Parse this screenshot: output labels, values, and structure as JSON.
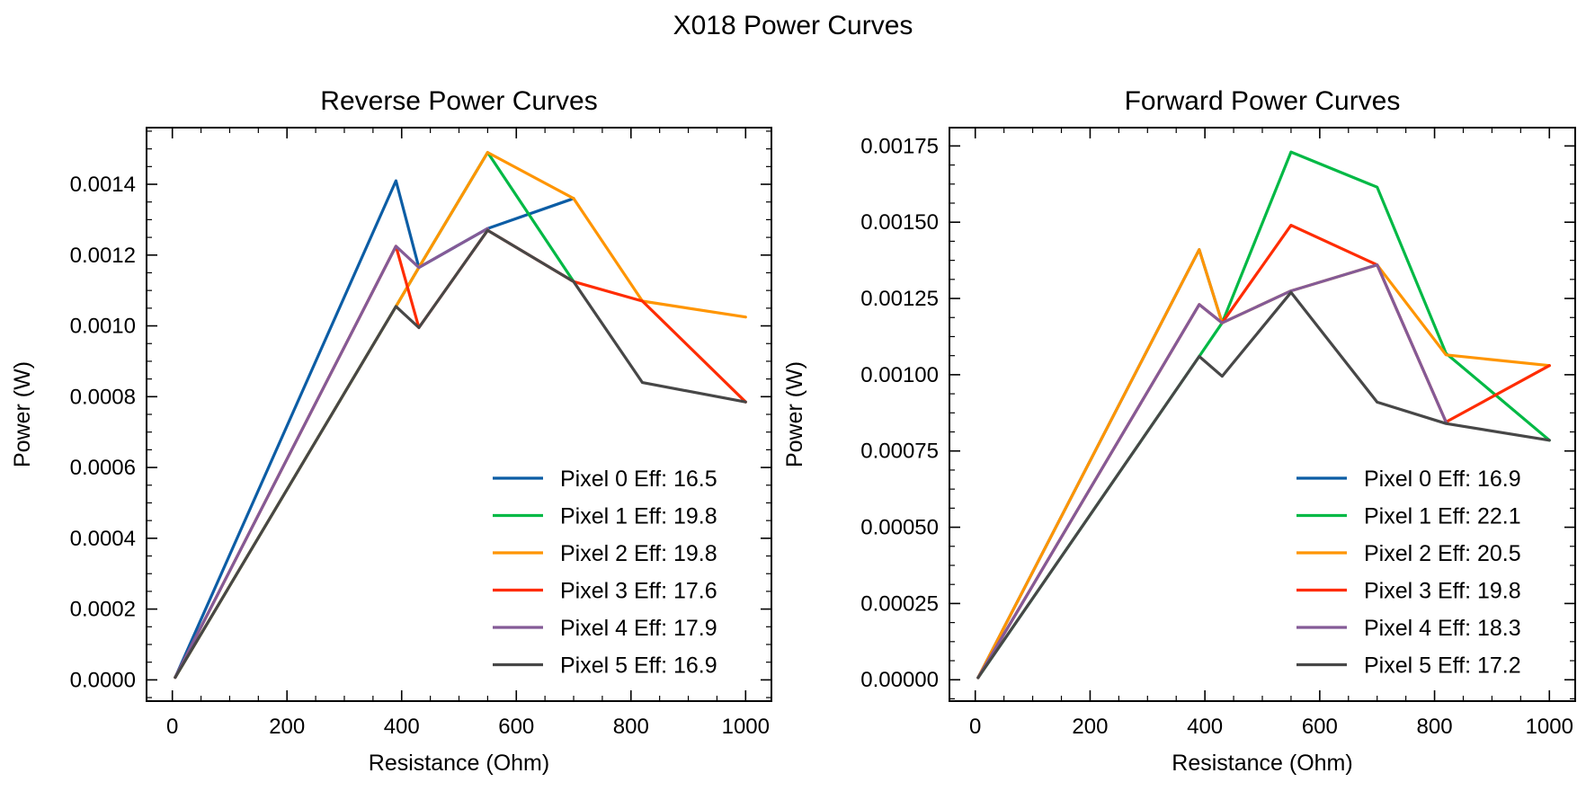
{
  "suptitle": "X018 Power Curves",
  "chart_data": [
    {
      "type": "line",
      "title": "Reverse Power Curves",
      "xlabel": "Resistance (Ohm)",
      "ylabel": "Power (W)",
      "xlim": [
        -45,
        1045
      ],
      "ylim": [
        -6e-05,
        0.00156
      ],
      "xticks": [
        0,
        200,
        400,
        600,
        800,
        1000
      ],
      "xtick_labels": [
        "0",
        "200",
        "400",
        "600",
        "800",
        "1000"
      ],
      "yticks": [
        0,
        0.0002,
        0.0004,
        0.0006,
        0.0008,
        0.001,
        0.0012,
        0.0014
      ],
      "ytick_labels": [
        "0.0000",
        "0.0002",
        "0.0004",
        "0.0006",
        "0.0008",
        "0.0010",
        "0.0012",
        "0.0014"
      ],
      "legend_position": "lower-right",
      "grid": false,
      "x": [
        5,
        390,
        430,
        550,
        700,
        820,
        1000
      ],
      "series": [
        {
          "name": "Pixel 0 Eff: 16.5",
          "color": "#0C5DA5",
          "values": [
            7e-06,
            0.00141,
            0.001165,
            0.001275,
            0.00136,
            null,
            null
          ]
        },
        {
          "name": "Pixel 1 Eff: 19.8",
          "color": "#00B945",
          "values": [
            7e-06,
            0.001055,
            0.001165,
            0.00149,
            0.001125,
            null,
            null
          ]
        },
        {
          "name": "Pixel 2 Eff: 19.8",
          "color": "#FF9500",
          "values": [
            7e-06,
            0.001055,
            0.001165,
            0.00149,
            0.00136,
            0.00107,
            0.001025
          ]
        },
        {
          "name": "Pixel 3 Eff: 17.6",
          "color": "#FF2C00",
          "values": [
            7e-06,
            0.001225,
            0.000995,
            0.00127,
            0.001125,
            0.00107,
            0.000785
          ]
        },
        {
          "name": "Pixel 4 Eff: 17.9",
          "color": "#845B97",
          "values": [
            7e-06,
            0.001225,
            0.001165,
            0.001275,
            null,
            null,
            null
          ]
        },
        {
          "name": "Pixel 5 Eff: 16.9",
          "color": "#474747",
          "values": [
            7e-06,
            0.001055,
            0.000995,
            0.00127,
            0.001125,
            0.00084,
            0.000785
          ]
        }
      ]
    },
    {
      "type": "line",
      "title": "Forward Power Curves",
      "xlabel": "Resistance (Ohm)",
      "ylabel": "Power (W)",
      "xlim": [
        -45,
        1045
      ],
      "ylim": [
        -7e-05,
        0.00181
      ],
      "xticks": [
        0,
        200,
        400,
        600,
        800,
        1000
      ],
      "xtick_labels": [
        "0",
        "200",
        "400",
        "600",
        "800",
        "1000"
      ],
      "yticks": [
        0,
        0.00025,
        0.0005,
        0.00075,
        0.001,
        0.00125,
        0.0015,
        0.00175
      ],
      "ytick_labels": [
        "0.00000",
        "0.00025",
        "0.00050",
        "0.00075",
        "0.00100",
        "0.00125",
        "0.00150",
        "0.00175"
      ],
      "legend_position": "lower-right",
      "grid": false,
      "x": [
        5,
        390,
        430,
        550,
        700,
        820,
        1000
      ],
      "series": [
        {
          "name": "Pixel 0 Eff: 16.9",
          "color": "#0C5DA5",
          "values": [
            7e-06,
            0.00141,
            0.00117,
            null,
            null,
            null,
            null
          ]
        },
        {
          "name": "Pixel 1 Eff: 22.1",
          "color": "#00B945",
          "values": [
            7e-06,
            0.00106,
            0.00117,
            0.00173,
            0.001615,
            0.00107,
            0.000785
          ]
        },
        {
          "name": "Pixel 2 Eff: 20.5",
          "color": "#FF9500",
          "values": [
            7e-06,
            0.00141,
            0.00117,
            0.001275,
            0.00136,
            0.001065,
            0.00103
          ]
        },
        {
          "name": "Pixel 3 Eff: 19.8",
          "color": "#FF2C00",
          "values": [
            7e-06,
            0.00123,
            0.00117,
            0.00149,
            0.00136,
            0.000845,
            0.00103
          ]
        },
        {
          "name": "Pixel 4 Eff: 18.3",
          "color": "#845B97",
          "values": [
            7e-06,
            0.00123,
            0.00117,
            0.001275,
            0.00136,
            0.000845,
            null
          ]
        },
        {
          "name": "Pixel 5 Eff: 17.2",
          "color": "#474747",
          "values": [
            7e-06,
            0.00106,
            0.000995,
            0.00127,
            0.00091,
            0.00084,
            0.000785
          ]
        }
      ]
    }
  ]
}
